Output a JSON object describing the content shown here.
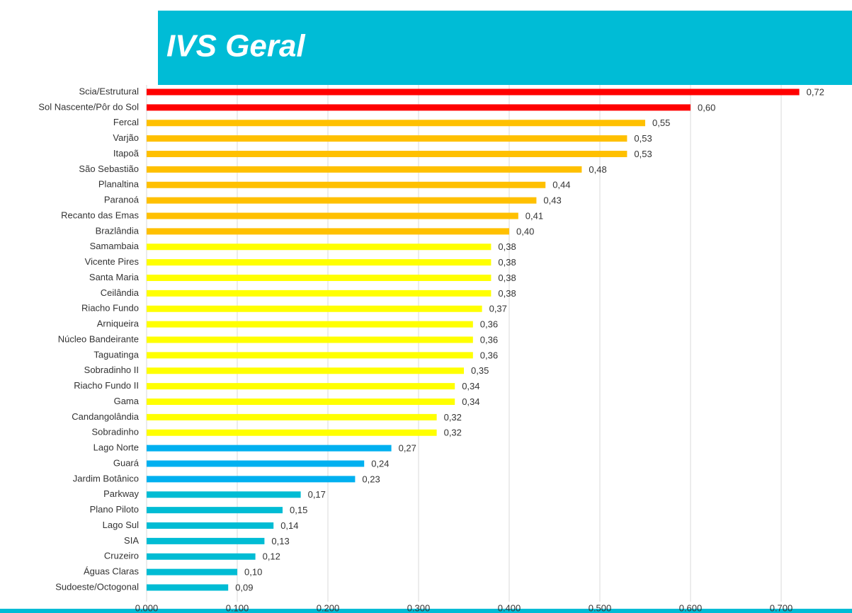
{
  "chart_data": {
    "type": "barh",
    "title": "IVS Geral",
    "categories": [
      "Scia/Estrutural",
      "Sol Nascente/Pôr do Sol",
      "Fercal",
      "Varjão",
      "Itapoã",
      "São Sebastião",
      "Planaltina",
      "Paranoá",
      "Recanto das Emas",
      "Brazlândia",
      "Samambaia",
      "Vicente Pires",
      "Santa Maria",
      "Ceilândia",
      "Riacho Fundo",
      "Arniqueira",
      "Núcleo Bandeirante",
      "Taguatinga",
      "Sobradinho II",
      "Riacho Fundo II",
      "Gama",
      "Candangolândia",
      "Sobradinho",
      "Lago Norte",
      "Guará",
      "Jardim Botânico",
      "Parkway",
      "Plano Piloto",
      "Lago Sul",
      "SIA",
      "Cruzeiro",
      "Águas Claras",
      "Sudoeste/Octogonal"
    ],
    "values": [
      0.72,
      0.6,
      0.55,
      0.53,
      0.53,
      0.48,
      0.44,
      0.43,
      0.41,
      0.4,
      0.38,
      0.38,
      0.38,
      0.38,
      0.37,
      0.36,
      0.36,
      0.36,
      0.35,
      0.34,
      0.34,
      0.32,
      0.32,
      0.27,
      0.24,
      0.23,
      0.17,
      0.15,
      0.14,
      0.13,
      0.12,
      0.1,
      0.09
    ],
    "value_labels": [
      "0,72",
      "0,60",
      "0,55",
      "0,53",
      "0,53",
      "0,48",
      "0,44",
      "0,43",
      "0,41",
      "0,40",
      "0,38",
      "0,38",
      "0,38",
      "0,38",
      "0,37",
      "0,36",
      "0,36",
      "0,36",
      "0,35",
      "0,34",
      "0,34",
      "0,32",
      "0,32",
      "0,27",
      "0,24",
      "0,23",
      "0,17",
      "0,15",
      "0,14",
      "0,13",
      "0,12",
      "0,10",
      "0,09"
    ],
    "colors": [
      "#ff0000",
      "#ff0000",
      "#ffc000",
      "#ffc000",
      "#ffc000",
      "#ffc000",
      "#ffc000",
      "#ffc000",
      "#ffc000",
      "#ffc000",
      "#ffff00",
      "#ffff00",
      "#ffff00",
      "#ffff00",
      "#ffff00",
      "#ffff00",
      "#ffff00",
      "#ffff00",
      "#ffff00",
      "#ffff00",
      "#ffff00",
      "#ffff00",
      "#ffff00",
      "#00b0f0",
      "#00b0f0",
      "#00b0f0",
      "#00bcd4",
      "#00bcd4",
      "#00bcd4",
      "#00bcd4",
      "#00bcd4",
      "#00bcd4",
      "#00bcd4"
    ],
    "xlim": [
      0,
      0.7
    ],
    "xticks": [
      {
        "value": 0,
        "label": "0.000"
      },
      {
        "value": 0.1,
        "label": "0.100"
      },
      {
        "value": 0.2,
        "label": "0.200"
      },
      {
        "value": 0.3,
        "label": "0.300"
      },
      {
        "value": 0.4,
        "label": "0.400"
      },
      {
        "value": 0.5,
        "label": "0.500"
      },
      {
        "value": 0.6,
        "label": "0.600"
      },
      {
        "value": 0.7,
        "label": "0.700"
      }
    ],
    "grid": true
  }
}
